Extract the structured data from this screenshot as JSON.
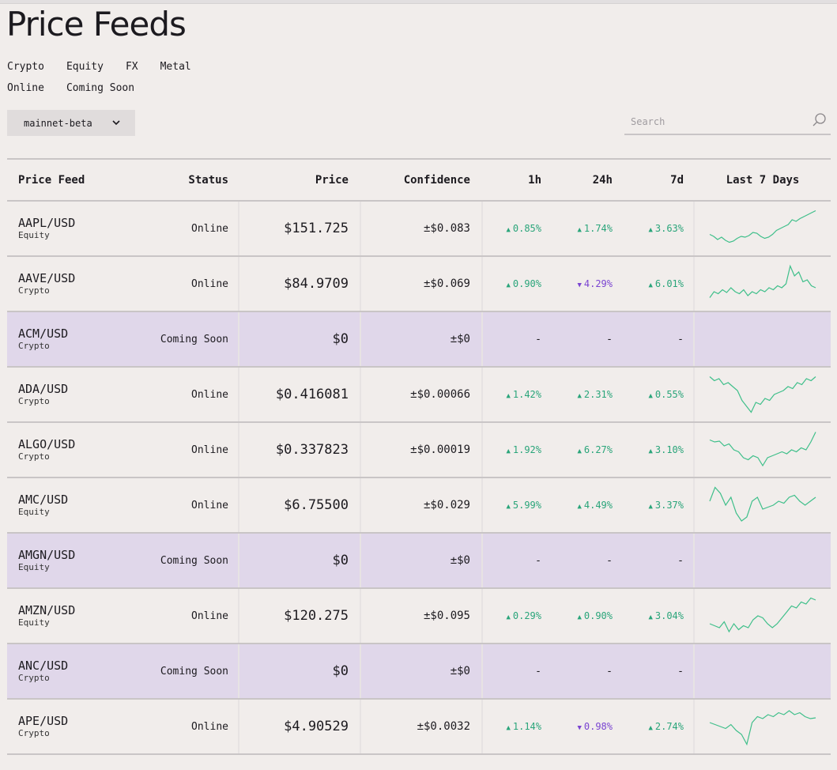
{
  "page": {
    "title": "Price Feeds"
  },
  "filters": {
    "asset_types": [
      "Crypto",
      "Equity",
      "FX",
      "Metal"
    ],
    "statuses": [
      "Online",
      "Coming Soon"
    ]
  },
  "cluster": {
    "selected": "mainnet-beta"
  },
  "search": {
    "placeholder": "Search",
    "value": ""
  },
  "table": {
    "columns": [
      "Price Feed",
      "Status",
      "Price",
      "Confidence",
      "1h",
      "24h",
      "7d",
      "Last 7 Days"
    ],
    "rows": [
      {
        "pair": "AAPL/USD",
        "asset": "Equity",
        "status": "Online",
        "price": "$151.725",
        "confidence": "±$0.083",
        "h1": "0.85%",
        "h1_dir": "up",
        "h24": "1.74%",
        "h24_dir": "up",
        "d7": "3.63%",
        "d7_dir": "up",
        "spark": [
          0.35,
          0.3,
          0.22,
          0.28,
          0.2,
          0.15,
          0.18,
          0.25,
          0.3,
          0.28,
          0.32,
          0.4,
          0.38,
          0.3,
          0.25,
          0.28,
          0.35,
          0.45,
          0.5,
          0.55,
          0.6,
          0.72,
          0.68,
          0.75,
          0.8,
          0.85,
          0.9,
          0.95
        ]
      },
      {
        "pair": "AAVE/USD",
        "asset": "Crypto",
        "status": "Online",
        "price": "$84.9709",
        "confidence": "±$0.069",
        "h1": "0.90%",
        "h1_dir": "up",
        "h24": "4.29%",
        "h24_dir": "down",
        "d7": "6.01%",
        "d7_dir": "up",
        "spark": [
          0.15,
          0.3,
          0.25,
          0.35,
          0.28,
          0.4,
          0.3,
          0.25,
          0.35,
          0.2,
          0.3,
          0.25,
          0.35,
          0.3,
          0.4,
          0.35,
          0.45,
          0.4,
          0.5,
          0.95,
          0.7,
          0.8,
          0.55,
          0.6,
          0.45,
          0.4
        ]
      },
      {
        "pair": "ACM/USD",
        "asset": "Crypto",
        "status": "Coming Soon",
        "price": "$0",
        "confidence": "±$0",
        "h1": "-",
        "h1_dir": "none",
        "h24": "-",
        "h24_dir": "none",
        "d7": "-",
        "d7_dir": "none",
        "spark": []
      },
      {
        "pair": "ADA/USD",
        "asset": "Crypto",
        "status": "Online",
        "price": "$0.416081",
        "confidence": "±$0.00066",
        "h1": "1.42%",
        "h1_dir": "up",
        "h24": "2.31%",
        "h24_dir": "up",
        "d7": "0.55%",
        "d7_dir": "up",
        "spark": [
          0.95,
          0.85,
          0.9,
          0.75,
          0.8,
          0.7,
          0.6,
          0.35,
          0.2,
          0.05,
          0.3,
          0.25,
          0.4,
          0.35,
          0.5,
          0.55,
          0.6,
          0.7,
          0.65,
          0.8,
          0.75,
          0.9,
          0.85,
          0.95
        ]
      },
      {
        "pair": "ALGO/USD",
        "asset": "Crypto",
        "status": "Online",
        "price": "$0.337823",
        "confidence": "±$0.00019",
        "h1": "1.92%",
        "h1_dir": "up",
        "h24": "6.27%",
        "h24_dir": "up",
        "d7": "3.10%",
        "d7_dir": "up",
        "spark": [
          0.75,
          0.7,
          0.72,
          0.6,
          0.65,
          0.5,
          0.45,
          0.3,
          0.25,
          0.35,
          0.3,
          0.1,
          0.3,
          0.35,
          0.4,
          0.45,
          0.4,
          0.5,
          0.45,
          0.55,
          0.5,
          0.7,
          0.95
        ]
      },
      {
        "pair": "AMC/USD",
        "asset": "Equity",
        "status": "Online",
        "price": "$6.75500",
        "confidence": "±$0.029",
        "h1": "5.99%",
        "h1_dir": "up",
        "h24": "4.49%",
        "h24_dir": "up",
        "d7": "3.37%",
        "d7_dir": "up",
        "spark": [
          0.6,
          0.95,
          0.8,
          0.5,
          0.7,
          0.3,
          0.1,
          0.2,
          0.6,
          0.7,
          0.4,
          0.45,
          0.5,
          0.6,
          0.55,
          0.7,
          0.75,
          0.6,
          0.5,
          0.6,
          0.7
        ]
      },
      {
        "pair": "AMGN/USD",
        "asset": "Equity",
        "status": "Coming Soon",
        "price": "$0",
        "confidence": "±$0",
        "h1": "-",
        "h1_dir": "none",
        "h24": "-",
        "h24_dir": "none",
        "d7": "-",
        "d7_dir": "none",
        "spark": []
      },
      {
        "pair": "AMZN/USD",
        "asset": "Equity",
        "status": "Online",
        "price": "$120.275",
        "confidence": "±$0.095",
        "h1": "0.29%",
        "h1_dir": "up",
        "h24": "0.90%",
        "h24_dir": "up",
        "d7": "3.04%",
        "d7_dir": "up",
        "spark": [
          0.3,
          0.25,
          0.2,
          0.35,
          0.1,
          0.3,
          0.15,
          0.25,
          0.2,
          0.4,
          0.5,
          0.45,
          0.3,
          0.2,
          0.3,
          0.45,
          0.6,
          0.75,
          0.7,
          0.85,
          0.8,
          0.95,
          0.9
        ]
      },
      {
        "pair": "ANC/USD",
        "asset": "Crypto",
        "status": "Coming Soon",
        "price": "$0",
        "confidence": "±$0",
        "h1": "-",
        "h1_dir": "none",
        "h24": "-",
        "h24_dir": "none",
        "d7": "-",
        "d7_dir": "none",
        "spark": []
      },
      {
        "pair": "APE/USD",
        "asset": "Crypto",
        "status": "Online",
        "price": "$4.90529",
        "confidence": "±$0.0032",
        "h1": "1.14%",
        "h1_dir": "up",
        "h24": "0.98%",
        "h24_dir": "down",
        "d7": "2.74%",
        "d7_dir": "up",
        "spark": [
          0.6,
          0.55,
          0.5,
          0.45,
          0.55,
          0.4,
          0.3,
          0.05,
          0.6,
          0.75,
          0.7,
          0.8,
          0.75,
          0.85,
          0.8,
          0.9,
          0.8,
          0.85,
          0.75,
          0.7,
          0.72
        ]
      }
    ]
  },
  "colors": {
    "background": "#f1edeb",
    "coming_soon_row": "#e0d7ea",
    "up": "#2aa57a",
    "down": "#7a44d1",
    "sparkline": "#3fbf8a"
  },
  "icons": [
    "chevron-down-icon",
    "search-icon",
    "triangle-up-icon",
    "triangle-down-icon"
  ]
}
